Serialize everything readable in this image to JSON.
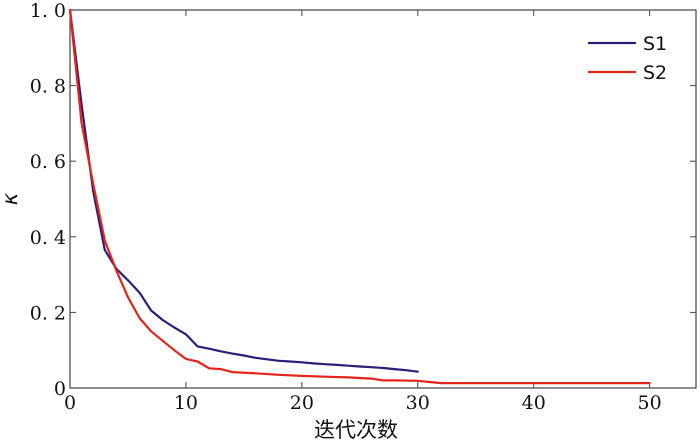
{
  "chart_data": {
    "type": "line",
    "title": "",
    "xlabel": "迭代次数",
    "ylabel": "κ",
    "xlim": [
      0,
      54
    ],
    "ylim": [
      0,
      1.0
    ],
    "xticks": [
      0,
      10,
      20,
      30,
      40,
      50
    ],
    "xtick_labels": [
      "0",
      "10",
      "20",
      "30",
      "40",
      "50"
    ],
    "yticks": [
      0,
      0.2,
      0.4,
      0.6,
      0.8,
      1.0
    ],
    "ytick_labels": [
      "0",
      "0. 2",
      "0. 4",
      "0. 6",
      "0. 8",
      "1. 0"
    ],
    "grid": false,
    "legend_position": "top-right",
    "series": [
      {
        "name": "S1",
        "color": "#2b1d7a",
        "x": [
          0,
          1,
          2,
          3,
          4,
          5,
          6,
          7,
          8,
          9,
          10,
          11,
          12,
          13,
          14,
          15,
          16,
          17,
          18,
          19,
          20,
          21,
          22,
          23,
          24,
          25,
          26,
          27,
          28,
          29,
          30
        ],
        "y": [
          1.0,
          0.75,
          0.52,
          0.365,
          0.315,
          0.285,
          0.252,
          0.205,
          0.18,
          0.16,
          0.142,
          0.11,
          0.104,
          0.097,
          0.091,
          0.086,
          0.08,
          0.076,
          0.072,
          0.07,
          0.068,
          0.065,
          0.063,
          0.061,
          0.059,
          0.057,
          0.055,
          0.053,
          0.05,
          0.047,
          0.043
        ]
      },
      {
        "name": "S2",
        "color": "#e3241b",
        "x": [
          0,
          1,
          2,
          3,
          4,
          5,
          6,
          7,
          8,
          9,
          10,
          11,
          12,
          13,
          14,
          16,
          18,
          20,
          22,
          24,
          26,
          27,
          28,
          30,
          31,
          32,
          34,
          36,
          38,
          40,
          42,
          44,
          46,
          48,
          50
        ],
        "y": [
          1.0,
          0.7,
          0.54,
          0.39,
          0.31,
          0.24,
          0.185,
          0.15,
          0.125,
          0.1,
          0.077,
          0.07,
          0.052,
          0.05,
          0.042,
          0.039,
          0.035,
          0.032,
          0.03,
          0.028,
          0.025,
          0.02,
          0.02,
          0.019,
          0.016,
          0.013,
          0.013,
          0.013,
          0.013,
          0.013,
          0.013,
          0.013,
          0.013,
          0.013,
          0.013
        ]
      }
    ]
  }
}
